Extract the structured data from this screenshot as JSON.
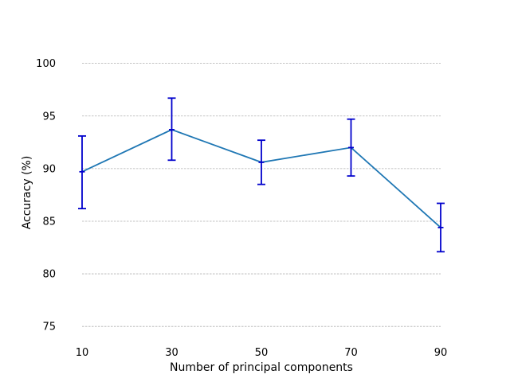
{
  "chart_data": {
    "type": "line",
    "title": "",
    "xlabel": "Number of principal components",
    "ylabel": "Accuracy (%)",
    "x": [
      10,
      30,
      50,
      70,
      90
    ],
    "xticks": [
      "10",
      "30",
      "50",
      "70",
      "90"
    ],
    "yticks": [
      "75",
      "80",
      "85",
      "90",
      "95",
      "100"
    ],
    "ylim": [
      73.5,
      103
    ],
    "grid": "horizontal dashed",
    "series": [
      {
        "values": [
          89.7,
          93.7,
          90.6,
          92.0,
          84.4
        ],
        "error_lower": [
          86.2,
          90.8,
          88.5,
          89.3,
          82.1
        ],
        "error_upper": [
          93.1,
          96.7,
          92.7,
          94.7,
          86.7
        ],
        "line_color": "#1f77b4",
        "error_color": "#0000cc"
      }
    ]
  }
}
